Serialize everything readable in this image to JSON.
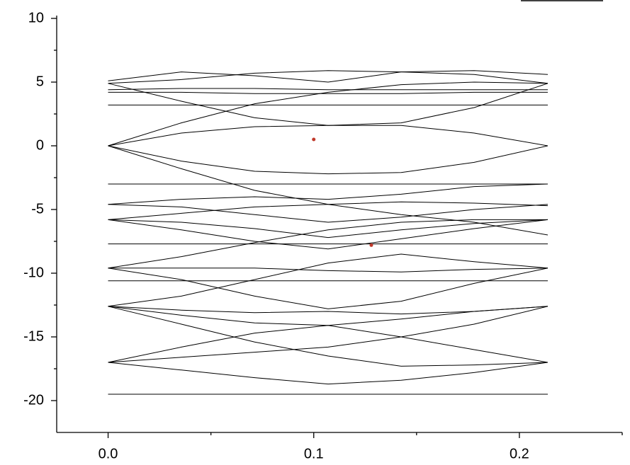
{
  "chart_data": {
    "type": "line",
    "x": [
      0,
      0.0356,
      0.0713,
      0.107,
      0.1425,
      0.178,
      0.2138
    ],
    "xlim": [
      -0.025,
      0.25
    ],
    "ylim": [
      -22.5,
      10
    ],
    "xticks": [
      {
        "value": 0,
        "label": "0.0"
      },
      0.1,
      0.2
    ],
    "xminorticks": [
      0.05,
      0.15,
      0.25
    ],
    "yticks": [
      10,
      5,
      0,
      -5,
      -10,
      -15,
      -20
    ],
    "yminorticks": [
      7.5,
      2.5,
      -2.5,
      -7.5,
      -12.5,
      -17.5
    ],
    "color": "#000000",
    "series": [
      {
        "values": [
          3.2,
          3.2,
          3.2,
          3.2,
          3.2,
          3.2,
          3.2
        ]
      },
      {
        "values": [
          4.2,
          4.2,
          4.1,
          4.1,
          4.1,
          4.2,
          4.2
        ]
      },
      {
        "values": [
          4.4,
          4.5,
          4.5,
          4.4,
          4.4,
          4.4,
          4.4
        ]
      },
      {
        "values": [
          4.9,
          5.2,
          5.7,
          5.9,
          5.8,
          5.6,
          4.9
        ]
      },
      {
        "values": [
          5.1,
          5.8,
          5.5,
          5.0,
          5.8,
          5.9,
          5.6
        ]
      },
      {
        "values": [
          0,
          1.0,
          1.5,
          1.6,
          1.6,
          1.0,
          0
        ]
      },
      {
        "values": [
          0,
          -1.2,
          -2.0,
          -2.2,
          -2.1,
          -1.3,
          0
        ]
      },
      {
        "values": [
          0,
          1.8,
          3.3,
          4.2,
          4.8,
          5.0,
          4.9
        ]
      },
      {
        "values": [
          4.9,
          3.5,
          2.2,
          1.6,
          1.8,
          3.0,
          4.9
        ]
      },
      {
        "values": [
          -3,
          -3,
          -3,
          -3,
          -3,
          -3,
          -3
        ]
      },
      {
        "values": [
          -4.6,
          -4.2,
          -4.0,
          -4.2,
          -3.8,
          -3.2,
          -3.0
        ]
      },
      {
        "values": [
          -4.6,
          -4.8,
          -5.4,
          -6.0,
          -5.6,
          -5.0,
          -4.6
        ]
      },
      {
        "values": [
          -5.8,
          -5.3,
          -4.8,
          -4.6,
          -4.4,
          -4.5,
          -4.7
        ]
      },
      {
        "values": [
          -5.8,
          -6.0,
          -6.5,
          -7.2,
          -6.6,
          -6.1,
          -5.8
        ]
      },
      {
        "values": [
          -7.7,
          -7.7,
          -7.7,
          -7.7,
          -7.7,
          -7.7,
          -7.7
        ]
      },
      {
        "values": [
          -5.8,
          -6.6,
          -7.5,
          -8.1,
          -7.3,
          -6.5,
          -5.8
        ]
      },
      {
        "values": [
          -9.6,
          -8.7,
          -7.6,
          -6.6,
          -6.0,
          -5.8,
          -5.8
        ]
      },
      {
        "values": [
          0,
          -1.8,
          -3.5,
          -4.6,
          -5.4,
          -6.0,
          -7.0
        ]
      },
      {
        "values": [
          -9.6,
          -9.6,
          -9.6,
          -9.8,
          -9.9,
          -9.7,
          -9.6
        ]
      },
      {
        "values": [
          -10.6,
          -10.6,
          -10.6,
          -10.6,
          -10.6,
          -10.6,
          -10.6
        ]
      },
      {
        "values": [
          -9.6,
          -10.5,
          -11.8,
          -12.8,
          -12.2,
          -10.8,
          -9.6
        ]
      },
      {
        "values": [
          -12.6,
          -11.8,
          -10.5,
          -9.2,
          -8.5,
          -9.1,
          -9.6
        ]
      },
      {
        "values": [
          -12.6,
          -12.9,
          -13.1,
          -13.0,
          -13.2,
          -13.0,
          -12.6
        ]
      },
      {
        "values": [
          -12.6,
          -13.3,
          -13.9,
          -14.1,
          -13.6,
          -13.0,
          -12.6
        ]
      },
      {
        "values": [
          -17,
          -15.8,
          -14.7,
          -14.1,
          -15,
          -16,
          -17
        ]
      },
      {
        "values": [
          -12.6,
          -14.0,
          -15.4,
          -16.5,
          -17.3,
          -17.2,
          -17.0
        ]
      },
      {
        "values": [
          -17,
          -17.6,
          -18.2,
          -18.7,
          -18.4,
          -17.8,
          -17
        ]
      },
      {
        "values": [
          -17,
          -16.6,
          -16.2,
          -15.8,
          -15.0,
          -14.0,
          -12.6
        ]
      },
      {
        "values": [
          -19.5,
          -19.5,
          -19.5,
          -19.5,
          -19.5,
          -19.5,
          -19.5
        ]
      }
    ],
    "points": {
      "x": [
        0.1,
        0.128
      ],
      "y": [
        0.5,
        -7.8
      ],
      "color": "#c0392b"
    }
  }
}
